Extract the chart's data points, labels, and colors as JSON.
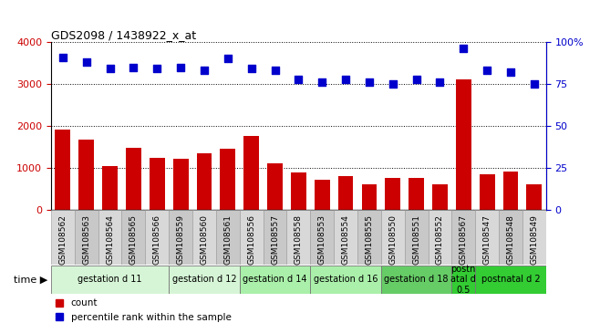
{
  "title": "GDS2098 / 1438922_x_at",
  "samples": [
    "GSM108562",
    "GSM108563",
    "GSM108564",
    "GSM108565",
    "GSM108566",
    "GSM108559",
    "GSM108560",
    "GSM108561",
    "GSM108556",
    "GSM108557",
    "GSM108558",
    "GSM108553",
    "GSM108554",
    "GSM108555",
    "GSM108550",
    "GSM108551",
    "GSM108552",
    "GSM108567",
    "GSM108547",
    "GSM108548",
    "GSM108549"
  ],
  "counts": [
    1920,
    1670,
    1050,
    1470,
    1230,
    1220,
    1340,
    1450,
    1760,
    1100,
    900,
    730,
    800,
    610,
    760,
    770,
    620,
    3100,
    850,
    920,
    620
  ],
  "percentiles": [
    91,
    88,
    84,
    85,
    84,
    85,
    83,
    90,
    84,
    83,
    78,
    76,
    78,
    76,
    75,
    78,
    76,
    96,
    83,
    82,
    75
  ],
  "groups": [
    {
      "label": "gestation d 11",
      "start": 0,
      "end": 5,
      "color": "#d6f5d6"
    },
    {
      "label": "gestation d 12",
      "start": 5,
      "end": 8,
      "color": "#d6f5d6"
    },
    {
      "label": "gestation d 14",
      "start": 8,
      "end": 11,
      "color": "#aaf0aa"
    },
    {
      "label": "gestation d 16",
      "start": 11,
      "end": 14,
      "color": "#aaf0aa"
    },
    {
      "label": "gestation d 18",
      "start": 14,
      "end": 17,
      "color": "#66cc66"
    },
    {
      "label": "postn\natal d\n0.5",
      "start": 17,
      "end": 18,
      "color": "#33cc33"
    },
    {
      "label": "postnatal d 2",
      "start": 18,
      "end": 21,
      "color": "#33cc33"
    }
  ],
  "bar_color": "#cc0000",
  "dot_color": "#0000cc",
  "left_ylim": [
    0,
    4000
  ],
  "right_ylim": [
    0,
    100
  ],
  "left_yticks": [
    0,
    1000,
    2000,
    3000,
    4000
  ],
  "right_yticks": [
    0,
    25,
    50,
    75,
    100
  ],
  "right_yticklabels": [
    "0",
    "25",
    "50",
    "75",
    "100%"
  ],
  "dot_size": 40,
  "label_fontsize": 6.5,
  "group_fontsize": 7.0
}
